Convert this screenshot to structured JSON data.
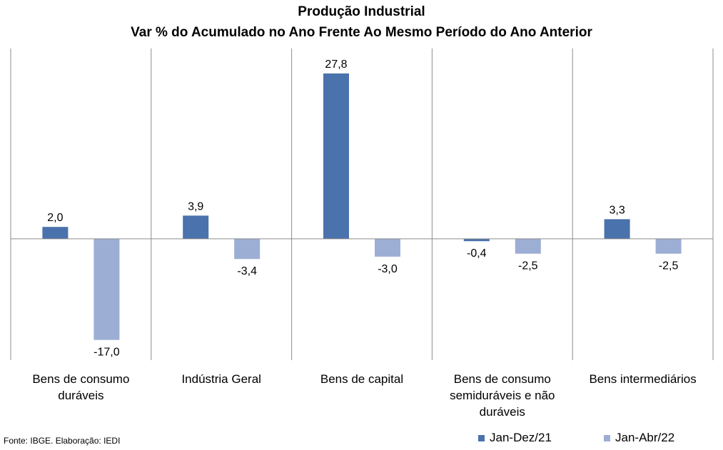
{
  "chart_data": {
    "type": "bar",
    "title": "Produção Industrial",
    "subtitle": "Var % do Acumulado no Ano Frente Ao Mesmo Período do Ano Anterior",
    "categories": [
      [
        "Bens de consumo",
        "duráveis"
      ],
      [
        "Indústria Geral"
      ],
      [
        "Bens de capital"
      ],
      [
        "Bens de consumo",
        "semiduráveis e não",
        "duráveis"
      ],
      [
        "Bens intermediários"
      ]
    ],
    "series": [
      {
        "name": "Jan-Dez/21",
        "values": [
          2.0,
          3.9,
          27.8,
          -0.4,
          3.3
        ],
        "labels": [
          "2,0",
          "3,9",
          "27,8",
          "-0,4",
          "3,3"
        ],
        "color": "#4A72AC"
      },
      {
        "name": "Jan-Abr/22",
        "values": [
          -17.0,
          -3.4,
          -3.0,
          -2.5,
          -2.5
        ],
        "labels": [
          "-17,0",
          "-3,4",
          "-3,0",
          "-2,5",
          "-2,5"
        ],
        "color": "#9DAED4"
      }
    ],
    "ylim": [
      -20.4,
      32.0
    ],
    "grid": false,
    "legend_position": "bottom-right",
    "source": "Fonte: IBGE. Elaboração: IEDI"
  }
}
